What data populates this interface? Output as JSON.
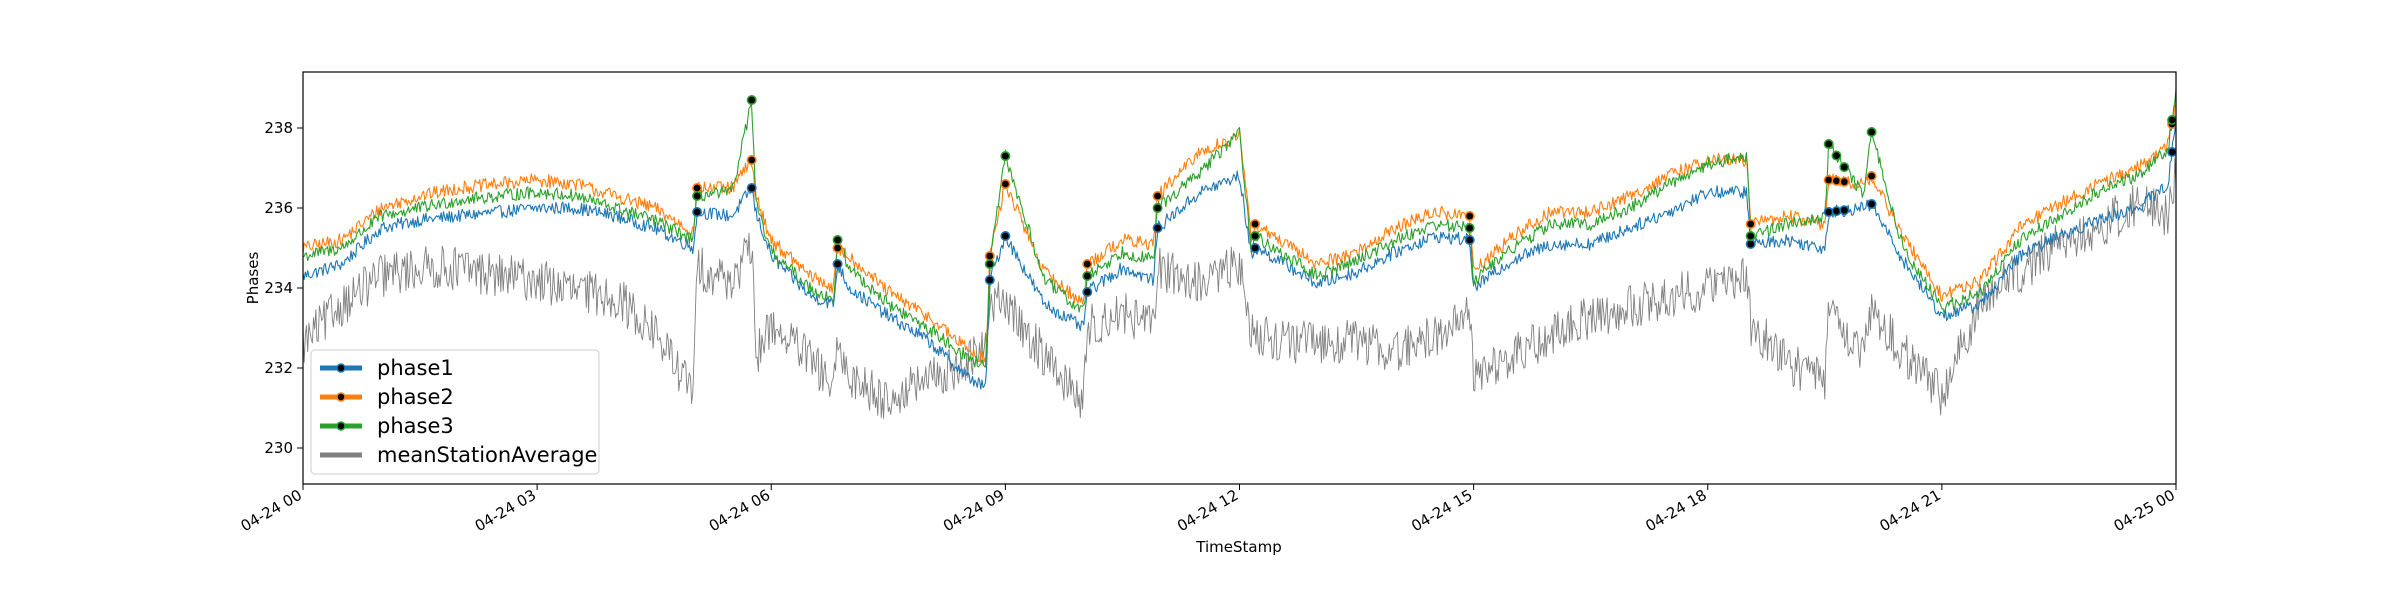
{
  "chart_data": {
    "type": "line",
    "title": "",
    "xlabel": "TimeStamp",
    "ylabel": "Phases",
    "x_start": "2024-04-24 00:00",
    "x_end": "2024-04-25 00:00",
    "x_ticks": [
      "04-24 00",
      "04-24 03",
      "04-24 06",
      "04-24 09",
      "04-24 12",
      "04-24 15",
      "04-24 18",
      "04-24 21",
      "04-25 00"
    ],
    "x_tick_hours": [
      0,
      3,
      6,
      9,
      12,
      15,
      18,
      21,
      24
    ],
    "ylim": [
      229.1,
      239.4
    ],
    "y_ticks": [
      230,
      232,
      234,
      236,
      238
    ],
    "grid": false,
    "legend_position": "lower-left",
    "x_hours": [
      0,
      0.5,
      1,
      1.5,
      2,
      2.5,
      3,
      3.5,
      4,
      4.5,
      5,
      5.05,
      5.5,
      5.75,
      5.8,
      6,
      6.5,
      6.8,
      6.85,
      7,
      7.5,
      8,
      8.5,
      8.75,
      8.8,
      9,
      9.5,
      10,
      10.05,
      10.5,
      10.9,
      10.95,
      11.5,
      12,
      12.15,
      12.2,
      12.5,
      13,
      13.5,
      14,
      14.5,
      14.95,
      15,
      15.5,
      16,
      16.5,
      17,
      17.5,
      18,
      18.5,
      18.55,
      19,
      19.5,
      19.55,
      20,
      20.1,
      20.5,
      21,
      21.5,
      22,
      22.5,
      23,
      23.5,
      23.9,
      24
    ],
    "series": [
      {
        "name": "phase1",
        "color": "#1f77b4",
        "values": [
          234.3,
          234.6,
          235.5,
          235.7,
          235.8,
          235.9,
          236,
          236,
          235.8,
          235.5,
          235,
          235.9,
          235.8,
          236.5,
          235.9,
          234.8,
          233.8,
          233.6,
          234.6,
          234,
          233.3,
          232.7,
          231.8,
          231.5,
          234.2,
          235.3,
          233.6,
          233,
          233.9,
          234.5,
          234.2,
          235.5,
          236.4,
          236.8,
          234.8,
          235,
          234.7,
          234.1,
          234.4,
          234.9,
          235.3,
          235.2,
          234,
          234.7,
          235.1,
          235.1,
          235.5,
          235.9,
          236.4,
          236.4,
          235.1,
          235.2,
          235,
          235.9,
          236,
          236.1,
          234.7,
          233.3,
          233.6,
          234.8,
          235.3,
          235.7,
          236,
          236.6,
          238.2
        ]
      },
      {
        "name": "phase2",
        "color": "#ff7f0e",
        "values": [
          235,
          235.2,
          236,
          236.3,
          236.5,
          236.6,
          236.7,
          236.6,
          236.3,
          236,
          235.4,
          236.5,
          236.5,
          237.2,
          236.3,
          235.2,
          234.3,
          234,
          235,
          234.8,
          233.9,
          233.3,
          232.5,
          232.2,
          234.8,
          236.6,
          234.4,
          233.6,
          234.6,
          235.2,
          235.1,
          236.3,
          237.4,
          237.8,
          235.3,
          235.6,
          235.2,
          234.6,
          234.9,
          235.5,
          235.9,
          235.8,
          234.4,
          235.3,
          235.9,
          235.9,
          236.3,
          236.8,
          237.2,
          237.2,
          235.6,
          235.8,
          235.6,
          236.7,
          236.6,
          236.8,
          235.3,
          233.8,
          234.2,
          235.5,
          236.1,
          236.6,
          237,
          237.6,
          238.6
        ]
      },
      {
        "name": "phase3",
        "color": "#2ca02c",
        "values": [
          234.8,
          235,
          235.8,
          236,
          236.2,
          236.3,
          236.4,
          236.3,
          236,
          235.7,
          235.2,
          236.3,
          236.4,
          238.7,
          236.1,
          234.9,
          234,
          233.7,
          235.2,
          234.5,
          233.6,
          233,
          232.3,
          232,
          234.6,
          237.3,
          234.2,
          233.4,
          234.3,
          234.9,
          234.7,
          236,
          236.9,
          237.9,
          235,
          235.3,
          234.9,
          234.3,
          234.7,
          235.2,
          235.6,
          235.5,
          234.2,
          235,
          235.6,
          235.6,
          236,
          236.6,
          237.1,
          237.3,
          235.3,
          235.6,
          235.8,
          237.6,
          236.3,
          237.9,
          235,
          233.5,
          233.9,
          235.2,
          235.8,
          236.4,
          236.8,
          237.5,
          238.9
        ]
      },
      {
        "name": "meanStationAverage",
        "color": "#808080",
        "values": [
          232.6,
          233.6,
          234.3,
          234.5,
          234.5,
          234.3,
          234.2,
          233.9,
          233.8,
          232.9,
          231.4,
          234.5,
          234.2,
          235,
          232.3,
          233.1,
          232.2,
          231.5,
          232.4,
          231.8,
          231.2,
          231.7,
          232.1,
          232.5,
          233.7,
          233.6,
          232.3,
          231.1,
          233,
          233.4,
          233,
          234.5,
          234.1,
          234.6,
          232.8,
          232.9,
          232.7,
          232.6,
          232.7,
          232.4,
          232.8,
          233.4,
          231.8,
          232.3,
          232.8,
          233.3,
          233.5,
          233.8,
          234,
          234.3,
          233.1,
          232.2,
          231.6,
          233.5,
          232.3,
          233.4,
          232.4,
          231.3,
          233.7,
          234.4,
          235.1,
          235.5,
          236.1,
          235.8,
          237
        ]
      }
    ]
  },
  "legend": {
    "items": [
      {
        "label": "phase1",
        "color": "#1f77b4"
      },
      {
        "label": "phase2",
        "color": "#ff7f0e"
      },
      {
        "label": "phase3",
        "color": "#2ca02c"
      },
      {
        "label": "meanStationAverage",
        "color": "#808080"
      }
    ]
  }
}
